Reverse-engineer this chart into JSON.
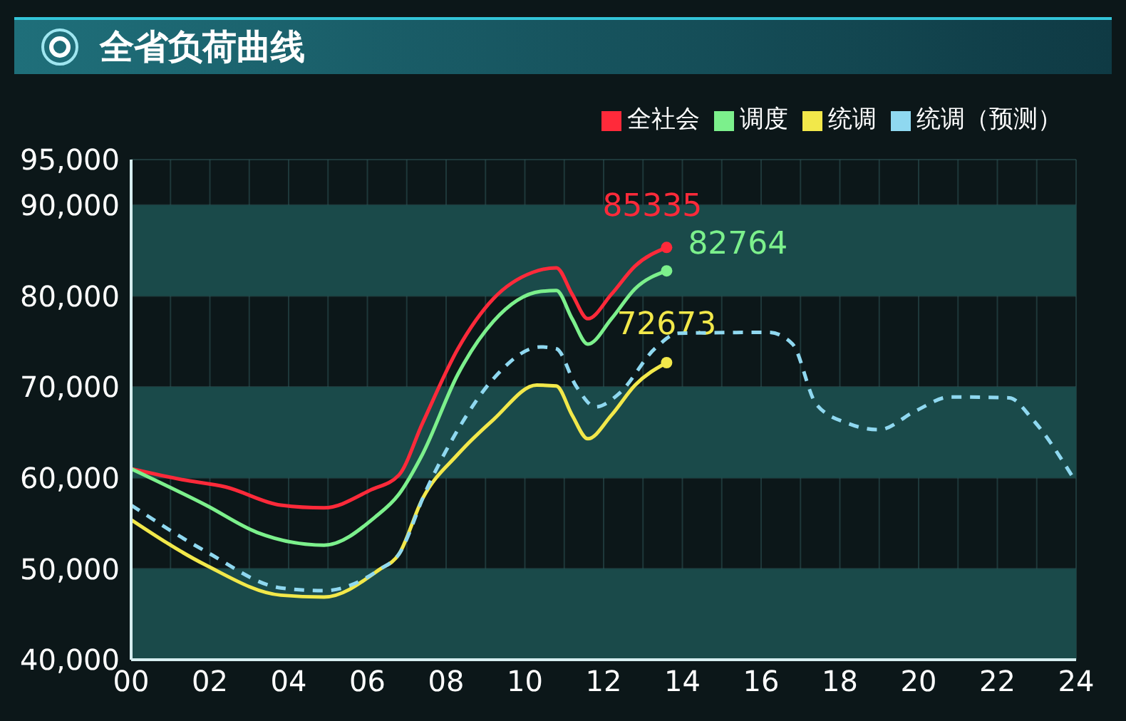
{
  "chart_data": {
    "type": "line",
    "title": "全省负荷曲线",
    "series": [
      {
        "name": "全社会",
        "color": "#ff2a3a",
        "line_style": "solid",
        "x": [
          0,
          1.3,
          2.4,
          3.8,
          4.9,
          6.1,
          6.8,
          7.4,
          8.3,
          9.2,
          10.2,
          10.8,
          11.2,
          11.6,
          12.2,
          12.8,
          13.6
        ],
        "values": [
          61000,
          59800,
          59000,
          57000,
          56700,
          58700,
          60300,
          66000,
          74200,
          79700,
          82600,
          83100,
          80200,
          77500,
          80200,
          83300,
          85335
        ]
      },
      {
        "name": "调度",
        "color": "#7cf08c",
        "line_style": "solid",
        "x": [
          0,
          1.9,
          3.2,
          4.9,
          6.2,
          6.8,
          7.4,
          8.3,
          9.2,
          10.4,
          10.8,
          11.2,
          11.6,
          12.2,
          12.8,
          13.6
        ],
        "values": [
          61000,
          57000,
          54000,
          52600,
          55700,
          58200,
          62600,
          71400,
          77200,
          80500,
          80600,
          77500,
          74700,
          77500,
          80800,
          82764
        ]
      },
      {
        "name": "统调",
        "color": "#f2e84a",
        "line_style": "solid",
        "x": [
          0,
          1.9,
          3.8,
          4.9,
          6.3,
          6.8,
          7.4,
          8.3,
          9.2,
          10.3,
          10.8,
          11.2,
          11.6,
          12.2,
          12.8,
          13.6
        ],
        "values": [
          55400,
          50400,
          47100,
          46900,
          49900,
          51600,
          57700,
          62600,
          66400,
          70200,
          70100,
          66900,
          64300,
          66900,
          70200,
          72673
        ]
      },
      {
        "name": "统调（预测）",
        "color": "#8fd8f0",
        "line_style": "dashed",
        "x": [
          0,
          1.9,
          3.8,
          4.9,
          6.3,
          6.8,
          7.5,
          8.3,
          9.2,
          10.4,
          10.8,
          11.3,
          11.8,
          12.4,
          13.3,
          13.9,
          16.2,
          16.8,
          17.4,
          18.2,
          19.0,
          19.9,
          20.8,
          22.3,
          22.9,
          23.9
        ],
        "values": [
          57000,
          51900,
          47900,
          47600,
          49900,
          51600,
          58700,
          65300,
          70900,
          74400,
          74200,
          70100,
          67800,
          69300,
          74200,
          75900,
          76000,
          74700,
          68100,
          66000,
          65300,
          67300,
          68900,
          68800,
          66400,
          60200
        ]
      }
    ],
    "annotations": [
      "85335",
      "82764",
      "72673"
    ],
    "xlim": [
      0,
      24
    ],
    "xticks": [
      {
        "value": 0,
        "label": "00"
      },
      {
        "value": 1,
        "label": null
      },
      {
        "value": 2,
        "label": "02"
      },
      {
        "value": 3,
        "label": null
      },
      {
        "value": 4,
        "label": "04"
      },
      {
        "value": 5,
        "label": null
      },
      {
        "value": 6,
        "label": "06"
      },
      {
        "value": 7,
        "label": null
      },
      {
        "value": 8,
        "label": "08"
      },
      {
        "value": 9,
        "label": null
      },
      {
        "value": 10,
        "label": "10"
      },
      {
        "value": 11,
        "label": null
      },
      {
        "value": 12,
        "label": "12"
      },
      {
        "value": 13,
        "label": null
      },
      {
        "value": 14,
        "label": "14"
      },
      {
        "value": 15,
        "label": null
      },
      {
        "value": 16,
        "label": "16"
      },
      {
        "value": 17,
        "label": null
      },
      {
        "value": 18,
        "label": "18"
      },
      {
        "value": 19,
        "label": null
      },
      {
        "value": 20,
        "label": "20"
      },
      {
        "value": 21,
        "label": null
      },
      {
        "value": 22,
        "label": "22"
      },
      {
        "value": 23,
        "label": null
      },
      {
        "value": 24,
        "label": "24"
      }
    ],
    "ylim": [
      40000,
      95000
    ],
    "yticks": [
      {
        "value": 40000,
        "label": "40,000"
      },
      {
        "value": 50000,
        "label": "50,000"
      },
      {
        "value": 60000,
        "label": "60,000"
      },
      {
        "value": 70000,
        "label": "70,000"
      },
      {
        "value": 80000,
        "label": "80,000"
      },
      {
        "value": 90000,
        "label": "90,000"
      },
      {
        "value": 95000,
        "label": "95,000"
      }
    ],
    "bands": [
      {
        "axis": "y",
        "from": 40000,
        "to": 50000,
        "color": "#1a4a4a"
      },
      {
        "axis": "y",
        "from": 60000,
        "to": 70000,
        "color": "#1a4a4a"
      },
      {
        "axis": "y",
        "from": 80000,
        "to": 90000,
        "color": "#1a4a4a"
      }
    ],
    "grid": true,
    "legend": "top right",
    "marker": "none"
  }
}
